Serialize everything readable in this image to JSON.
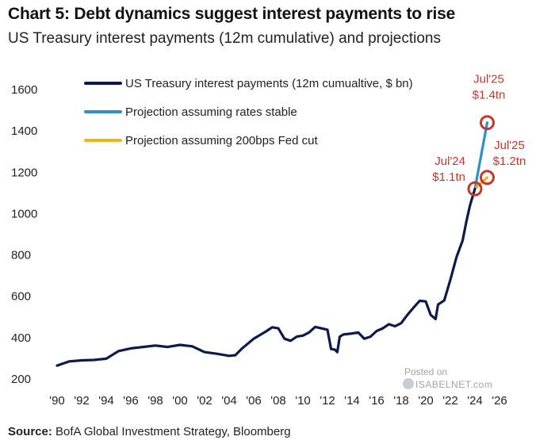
{
  "header": {
    "title": "Chart 5: Debt dynamics suggest interest payments to rise",
    "subtitle": "US Treasury interest payments (12m cumulative) and projections"
  },
  "footer": {
    "source_label": "Source:",
    "source_text": "BofA Global Investment Strategy, Bloomberg"
  },
  "watermark": {
    "posted": "Posted on",
    "site": "ISABELNET.com"
  },
  "colors": {
    "main_series": "#0d1b4c",
    "stable_projection": "#2f8fcb",
    "cut_projection": "#f2b417",
    "annotation": "#c0392b",
    "axis_text": "#222222"
  },
  "chart_data": {
    "type": "line",
    "title": "",
    "xlabel": "",
    "ylabel": "",
    "ylim": [
      200,
      1600
    ],
    "xlim": [
      1990,
      2026
    ],
    "yticks": [
      200,
      400,
      600,
      800,
      1000,
      1200,
      1400,
      1600
    ],
    "xticks": [
      1990,
      1992,
      1994,
      1996,
      1998,
      2000,
      2002,
      2004,
      2006,
      2008,
      2010,
      2012,
      2014,
      2016,
      2018,
      2020,
      2022,
      2024,
      2026
    ],
    "xtick_labels": [
      "'90",
      "'92",
      "'94",
      "'96",
      "'98",
      "'00",
      "'02",
      "'04",
      "'06",
      "'08",
      "'10",
      "'12",
      "'14",
      "'16",
      "'18",
      "'20",
      "'22",
      "'24",
      "'26"
    ],
    "grid": false,
    "legend_position": "top-left",
    "series": [
      {
        "name": "US Treasury interest payments (12m cumualtive, $ bn)",
        "color": "#0d1b4c",
        "x": [
          1990,
          1990.5,
          1991,
          1992,
          1993,
          1994,
          1995,
          1996,
          1997,
          1998,
          1999,
          2000,
          2001,
          2002,
          2003,
          2004,
          2004.5,
          2005,
          2006,
          2007,
          2007.5,
          2008,
          2008.5,
          2009,
          2009.5,
          2010,
          2010.5,
          2011,
          2011.5,
          2012,
          2012.3,
          2012.6,
          2012.8,
          2013,
          2013.3,
          2014,
          2014.5,
          2015,
          2015.5,
          2016,
          2016.5,
          2017,
          2017.5,
          2018,
          2018.5,
          2019,
          2019.5,
          2020,
          2020.4,
          2020.8,
          2021,
          2021.5,
          2022,
          2022.5,
          2023,
          2023.3,
          2023.6,
          2024
        ],
        "y": [
          265,
          275,
          285,
          290,
          292,
          298,
          335,
          348,
          355,
          362,
          355,
          365,
          358,
          330,
          322,
          312,
          315,
          345,
          395,
          430,
          450,
          445,
          395,
          385,
          405,
          410,
          425,
          452,
          445,
          438,
          345,
          342,
          330,
          405,
          415,
          420,
          425,
          395,
          405,
          432,
          445,
          465,
          455,
          470,
          510,
          545,
          578,
          575,
          510,
          490,
          560,
          580,
          680,
          790,
          870,
          960,
          1040,
          1120
        ]
      },
      {
        "name": "Projection assuming rates stable",
        "color": "#2f8fcb",
        "x": [
          2024,
          2025
        ],
        "y": [
          1120,
          1440
        ]
      },
      {
        "name": "Projection assuming 200bps Fed cut",
        "color": "#f2b417",
        "x": [
          2024,
          2025
        ],
        "y": [
          1120,
          1175
        ]
      }
    ],
    "annotations": [
      {
        "label_1": "Jul'24",
        "label_2": "$1.1tn",
        "x": 2024,
        "y": 1120,
        "text_side": "left"
      },
      {
        "label_1": "Jul'25",
        "label_2": "$1.4tn",
        "x": 2025,
        "y": 1440,
        "text_side": "above"
      },
      {
        "label_1": "Jul'25",
        "label_2": "$1.2tn",
        "x": 2025,
        "y": 1175,
        "text_side": "right"
      }
    ]
  }
}
